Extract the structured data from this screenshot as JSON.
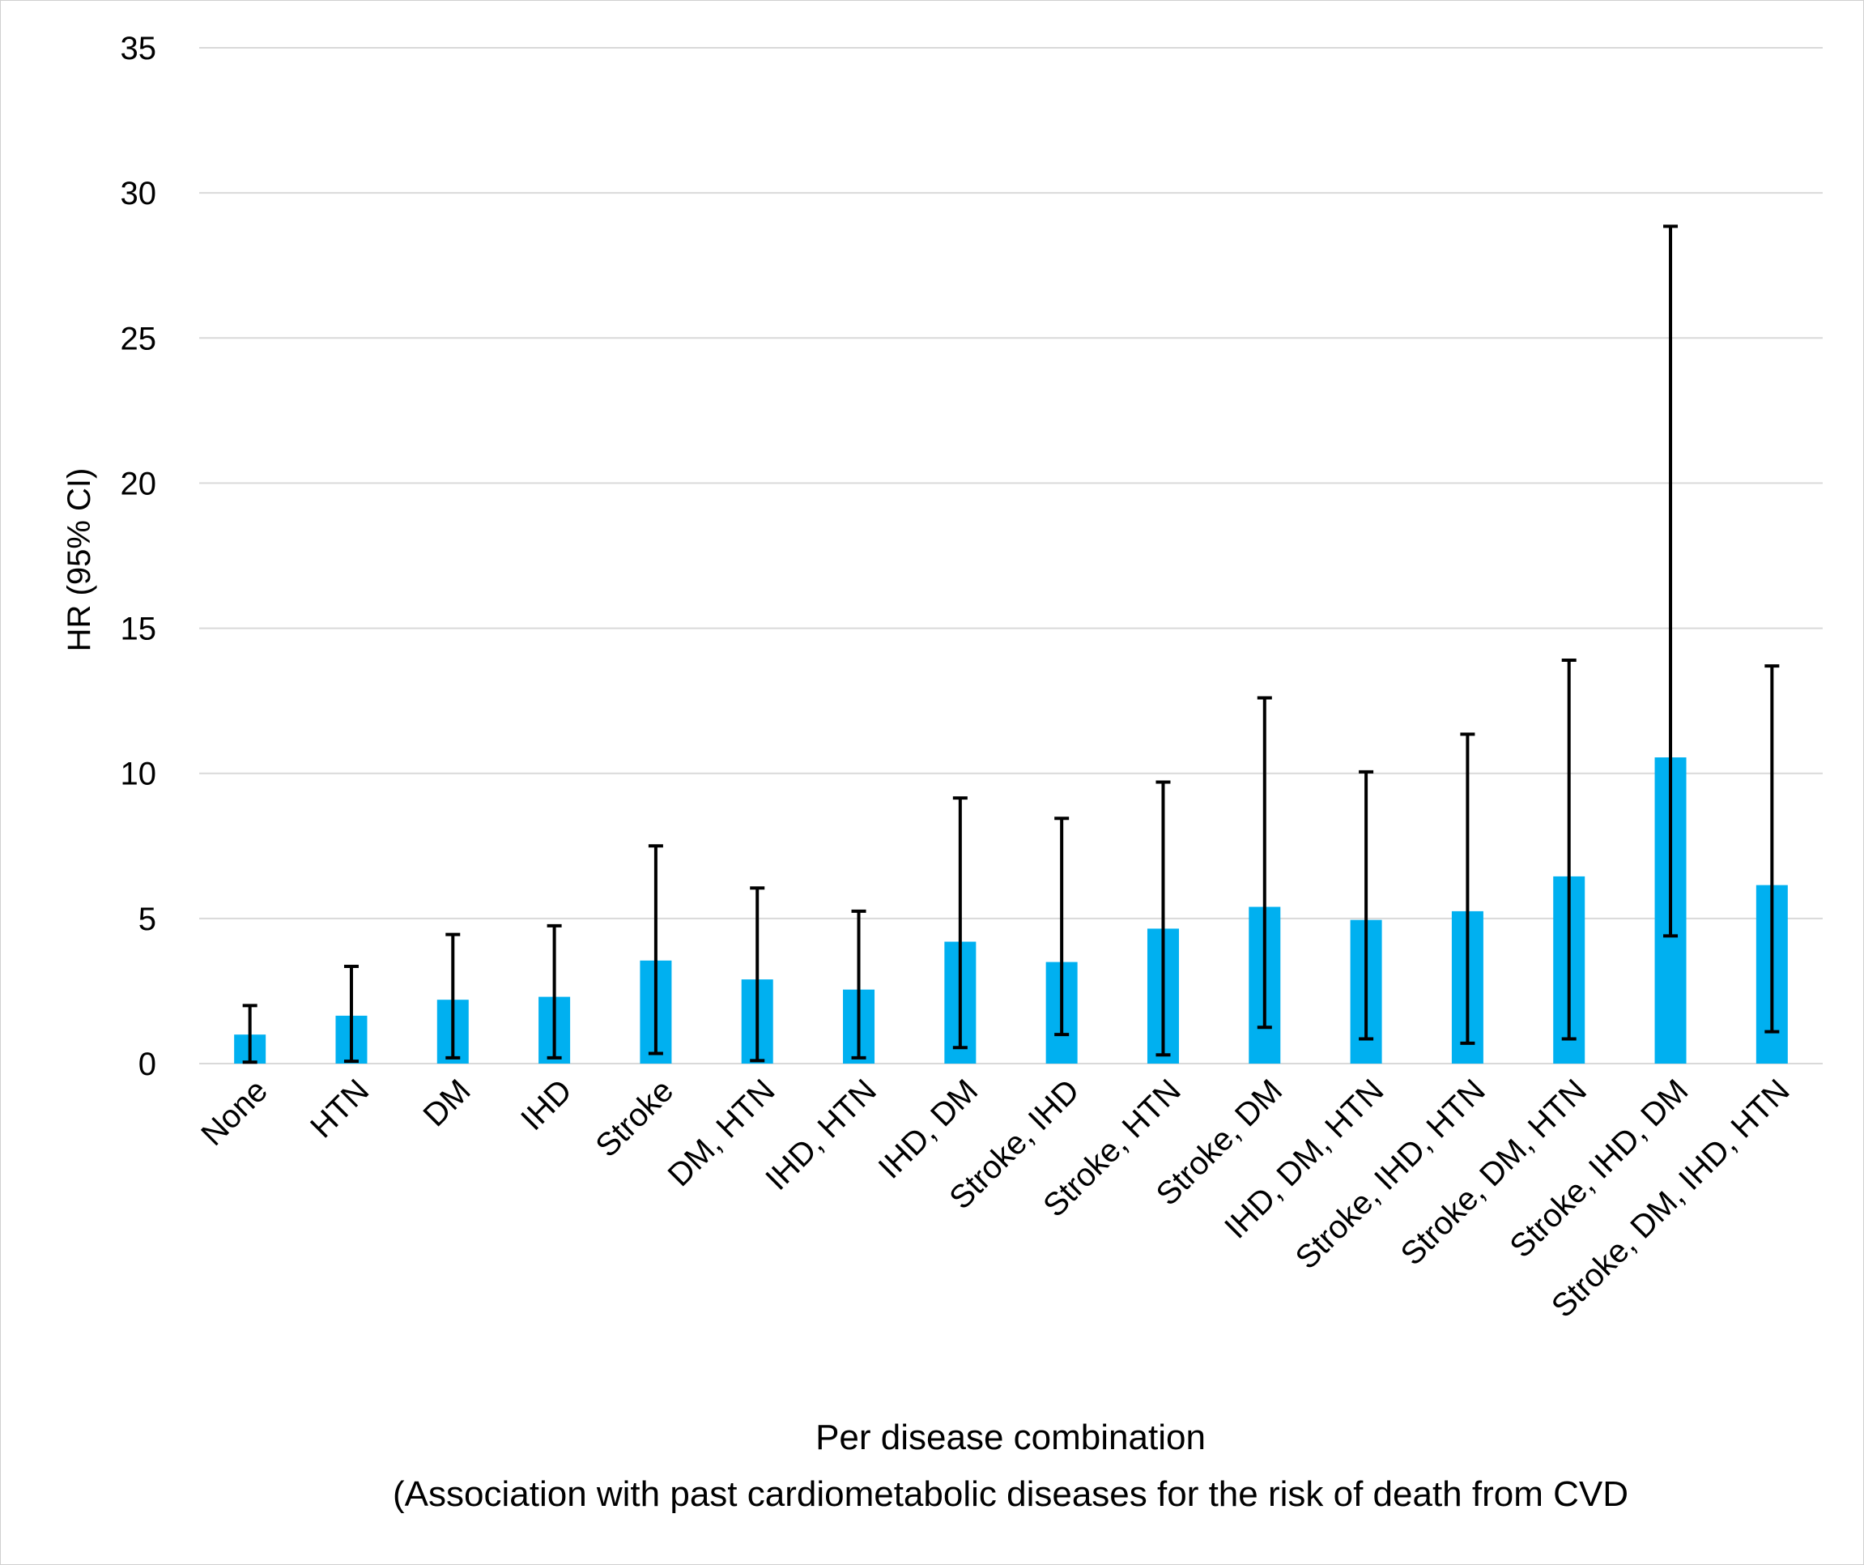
{
  "chart_data": {
    "type": "bar",
    "categories": [
      "None",
      "HTN",
      "DM",
      "IHD",
      "Stroke",
      "DM, HTN",
      "IHD, HTN",
      "IHD, DM",
      "Stroke, IHD",
      "Stroke, HTN",
      "Stroke, DM",
      "IHD, DM, HTN",
      "Stroke, IHD, HTN",
      "Stroke, DM, HTN",
      "Stroke, IHD, DM",
      "Stroke, DM, IHD, HTN"
    ],
    "values": [
      1.0,
      1.65,
      2.2,
      2.3,
      3.55,
      2.9,
      2.55,
      4.2,
      3.5,
      4.65,
      5.4,
      4.95,
      5.25,
      6.45,
      10.55,
      6.15
    ],
    "ci_lower": [
      0.05,
      0.08,
      0.2,
      0.2,
      0.35,
      0.1,
      0.2,
      0.55,
      1.0,
      0.3,
      1.25,
      0.85,
      0.7,
      0.85,
      4.4,
      1.1
    ],
    "ci_upper": [
      2.0,
      3.35,
      4.45,
      4.75,
      7.5,
      6.05,
      5.25,
      9.15,
      8.45,
      9.7,
      12.6,
      10.05,
      11.35,
      13.9,
      28.85,
      13.7
    ],
    "title": "",
    "xlabel": "Per disease combination",
    "xlabel_line2": "(Association with past cardiometabolic diseases for the risk of death from CVD",
    "ylabel": "HR (95% CI)",
    "ylim": [
      0,
      35
    ],
    "yticks": [
      "0",
      "5",
      "10",
      "15",
      "20",
      "25",
      "30",
      "35"
    ],
    "grid": true,
    "legend": "none",
    "bar_color": "#00B0F0",
    "error_bar_color": "#000000",
    "grid_color": "#d9d9d9"
  }
}
